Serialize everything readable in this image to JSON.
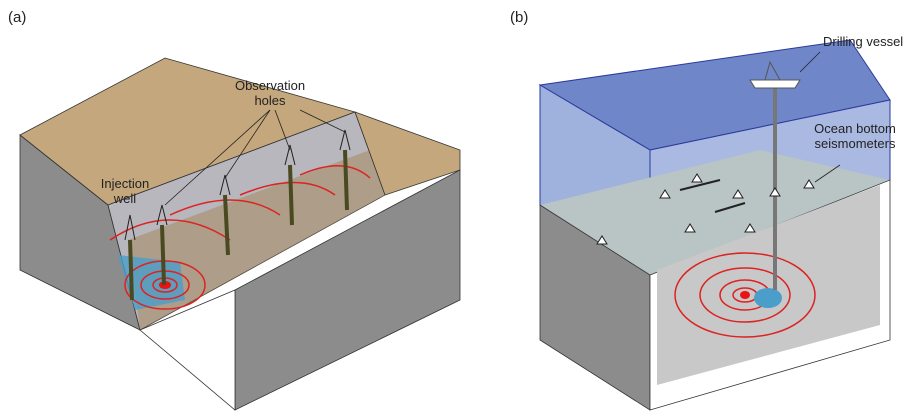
{
  "panels": [
    {
      "label": "(a)",
      "annotations": [
        {
          "lines": [
            "Observation",
            "holes"
          ]
        },
        {
          "lines": [
            "Injection",
            "well"
          ]
        }
      ]
    },
    {
      "label": "(b)",
      "annotations": [
        {
          "lines": [
            "Drilling vessel"
          ]
        },
        {
          "lines": [
            "Ocean bottom",
            "seismometers"
          ]
        }
      ]
    }
  ]
}
